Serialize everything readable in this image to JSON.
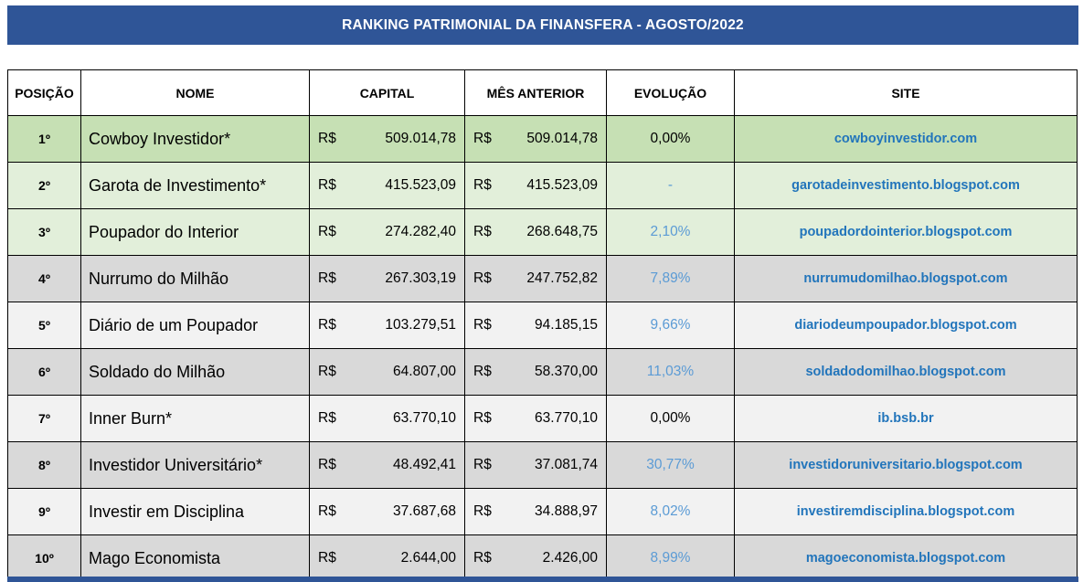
{
  "banner": {
    "title": "RANKING PATRIMONIAL DA FINANSFERA - AGOSTO/2022"
  },
  "colors": {
    "banner_bg": "#2f5597",
    "banner_text": "#ffffff",
    "site_link_blue": "#2275bb",
    "evolution_blue": "#5b9bd5",
    "evolution_black": "#000000",
    "row_green_dark": "#c6e0b4",
    "row_green_light": "#e2efda",
    "row_gray": "#d9d9d9",
    "row_light": "#f2f2f2"
  },
  "table": {
    "currency_symbol": "R$",
    "headers": [
      {
        "key": "position",
        "label": "POSIÇÃO"
      },
      {
        "key": "name",
        "label": "NOME"
      },
      {
        "key": "capital",
        "label": "CAPITAL"
      },
      {
        "key": "previous",
        "label": "MÊS ANTERIOR"
      },
      {
        "key": "evolution",
        "label": "EVOLUÇÃO"
      },
      {
        "key": "site",
        "label": "SITE"
      }
    ],
    "rows": [
      {
        "position": "1º",
        "name": "Cowboy Investidor*",
        "capital": "509.014,78",
        "previous": "509.014,78",
        "evolution": "0,00%",
        "evolution_color": "#000000",
        "bg": "#c6e0b4",
        "site": "cowboyinvestidor.com"
      },
      {
        "position": "2º",
        "name": "Garota de Investimento*",
        "capital": "415.523,09",
        "previous": "415.523,09",
        "evolution": "-",
        "evolution_color": "#5b9bd5",
        "bg": "#e2efda",
        "site": "garotadeinvestimento.blogspot.com"
      },
      {
        "position": "3º",
        "name": "Poupador do Interior",
        "capital": "274.282,40",
        "previous": "268.648,75",
        "evolution": "2,10%",
        "evolution_color": "#5b9bd5",
        "bg": "#e2efda",
        "site": "poupadordointerior.blogspot.com"
      },
      {
        "position": "4º",
        "name": "Nurrumo do Milhão",
        "capital": "267.303,19",
        "previous": "247.752,82",
        "evolution": "7,89%",
        "evolution_color": "#5b9bd5",
        "bg": "#d9d9d9",
        "site": "nurrumudomilhao.blogspot.com"
      },
      {
        "position": "5º",
        "name": "Diário de um Poupador",
        "capital": "103.279,51",
        "previous": "94.185,15",
        "evolution": "9,66%",
        "evolution_color": "#5b9bd5",
        "bg": "#f2f2f2",
        "site": "diariodeumpoupador.blogspot.com"
      },
      {
        "position": "6º",
        "name": "Soldado do Milhão",
        "capital": "64.807,00",
        "previous": "58.370,00",
        "evolution": "11,03%",
        "evolution_color": "#5b9bd5",
        "bg": "#d9d9d9",
        "site": "soldadodomilhao.blogspot.com"
      },
      {
        "position": "7º",
        "name": "Inner Burn*",
        "capital": "63.770,10",
        "previous": "63.770,10",
        "evolution": "0,00%",
        "evolution_color": "#000000",
        "bg": "#f2f2f2",
        "site": "ib.bsb.br"
      },
      {
        "position": "8º",
        "name": "Investidor Universitário*",
        "capital": "48.492,41",
        "previous": "37.081,74",
        "evolution": "30,77%",
        "evolution_color": "#5b9bd5",
        "bg": "#d9d9d9",
        "site": "investidoruniversitario.blogspot.com"
      },
      {
        "position": "9º",
        "name": "Investir em Disciplina",
        "capital": "37.687,68",
        "previous": "34.888,97",
        "evolution": "8,02%",
        "evolution_color": "#5b9bd5",
        "bg": "#f2f2f2",
        "site": "investiremdisciplina.blogspot.com"
      },
      {
        "position": "10º",
        "name": "Mago Economista",
        "capital": "2.644,00",
        "previous": "2.426,00",
        "evolution": "8,99%",
        "evolution_color": "#5b9bd5",
        "bg": "#d9d9d9",
        "site": "magoeconomista.blogspot.com"
      }
    ]
  }
}
